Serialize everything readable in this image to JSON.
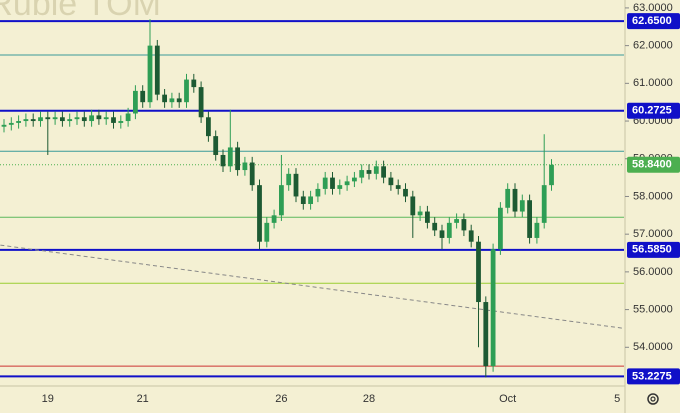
{
  "chart_data": {
    "type": "candlestick",
    "watermark": "n Ruble TOM",
    "categories": [
      null,
      null,
      null,
      null,
      null,
      null,
      "19",
      null,
      null,
      null,
      null,
      null,
      null,
      null,
      null,
      null,
      null,
      null,
      null,
      "21",
      null,
      null,
      null,
      null,
      null,
      null,
      null,
      null,
      null,
      null,
      null,
      null,
      null,
      null,
      null,
      null,
      null,
      null,
      "26",
      null,
      null,
      null,
      null,
      null,
      null,
      null,
      null,
      null,
      null,
      null,
      "28",
      null,
      null,
      null,
      null,
      null,
      null,
      null,
      null,
      null,
      null,
      null,
      null,
      null,
      null,
      null,
      null,
      null,
      null,
      "Oct",
      null,
      null,
      null,
      null,
      null,
      null,
      null,
      null,
      null,
      null,
      null,
      null,
      null,
      null,
      "5"
    ],
    "open": [
      59.85,
      59.9,
      59.95,
      60.0,
      60.05,
      60.0,
      60.1,
      60.05,
      60.1,
      60.0,
      60.05,
      60.1,
      60.0,
      60.15,
      60.05,
      60.1,
      59.95,
      60.0,
      60.2,
      60.8,
      60.5,
      62.0,
      60.7,
      60.5,
      60.6,
      60.5,
      61.1,
      60.9,
      60.1,
      59.6,
      59.1,
      58.8,
      59.3,
      58.7,
      58.9,
      58.3,
      56.8,
      57.3,
      57.5,
      58.3,
      58.6,
      58.0,
      57.8,
      58.0,
      58.2,
      58.5,
      58.2,
      58.3,
      58.4,
      58.5,
      58.7,
      58.6,
      58.8,
      58.5,
      58.3,
      58.2,
      58.0,
      57.5,
      57.6,
      57.3,
      57.1,
      56.9,
      57.3,
      57.4,
      57.1,
      56.8,
      55.2,
      53.5,
      56.6,
      57.7,
      58.2,
      57.6,
      57.9,
      56.9,
      57.3,
      58.3,
      null,
      null,
      null,
      null,
      null,
      null,
      null,
      null,
      null
    ],
    "high": [
      60.05,
      60.1,
      60.15,
      60.2,
      60.2,
      60.25,
      60.25,
      60.25,
      60.25,
      60.2,
      60.25,
      60.25,
      60.3,
      60.3,
      60.25,
      60.25,
      60.15,
      60.35,
      60.95,
      60.95,
      62.7,
      62.15,
      60.85,
      60.75,
      60.75,
      61.25,
      61.25,
      61.05,
      60.25,
      59.75,
      59.25,
      60.3,
      59.45,
      59.05,
      59.05,
      58.45,
      57.45,
      57.65,
      59.1,
      58.75,
      58.75,
      58.15,
      58.15,
      58.35,
      58.65,
      58.65,
      58.45,
      58.55,
      58.65,
      58.85,
      58.85,
      58.95,
      58.95,
      58.65,
      58.45,
      58.35,
      58.15,
      57.75,
      57.75,
      57.45,
      57.25,
      57.45,
      57.55,
      57.55,
      57.25,
      56.95,
      55.35,
      56.75,
      57.85,
      58.35,
      58.35,
      58.05,
      58.05,
      57.45,
      59.65,
      58.99,
      null,
      null,
      null,
      null,
      null,
      null,
      null,
      null,
      null
    ],
    "low": [
      59.7,
      59.75,
      59.8,
      59.85,
      59.85,
      59.85,
      59.1,
      59.9,
      59.85,
      59.85,
      59.9,
      59.85,
      59.85,
      59.9,
      59.9,
      59.8,
      59.8,
      59.85,
      60.05,
      60.35,
      60.35,
      60.55,
      60.35,
      60.35,
      60.35,
      60.35,
      60.75,
      59.95,
      59.45,
      58.95,
      58.65,
      58.65,
      58.55,
      58.55,
      58.15,
      56.6,
      56.65,
      57.15,
      57.35,
      58.15,
      57.85,
      57.65,
      57.65,
      57.85,
      58.05,
      58.05,
      58.05,
      58.15,
      58.25,
      58.35,
      58.45,
      58.45,
      58.35,
      58.15,
      58.05,
      57.85,
      56.9,
      57.35,
      57.15,
      56.95,
      56.6,
      56.75,
      57.15,
      56.95,
      56.65,
      54.0,
      53.2,
      53.35,
      56.45,
      57.55,
      57.45,
      57.45,
      56.75,
      56.75,
      57.15,
      58.15,
      null,
      null,
      null,
      null,
      null,
      null,
      null,
      null,
      null
    ],
    "close": [
      59.9,
      59.95,
      60.0,
      60.05,
      60.0,
      60.1,
      60.05,
      60.1,
      60.0,
      60.05,
      60.1,
      60.0,
      60.15,
      60.05,
      60.1,
      59.95,
      60.0,
      60.2,
      60.8,
      60.5,
      62.0,
      60.7,
      60.5,
      60.6,
      60.5,
      61.1,
      60.9,
      60.1,
      59.6,
      59.1,
      58.8,
      59.3,
      58.7,
      58.9,
      58.3,
      56.8,
      57.3,
      57.5,
      58.3,
      58.6,
      58.0,
      57.8,
      58.0,
      58.2,
      58.5,
      58.2,
      58.3,
      58.4,
      58.5,
      58.7,
      58.6,
      58.8,
      58.5,
      58.3,
      58.2,
      58.0,
      57.5,
      57.6,
      57.3,
      57.1,
      56.9,
      57.3,
      57.4,
      57.1,
      56.8,
      55.2,
      53.5,
      56.6,
      57.7,
      58.2,
      57.6,
      57.9,
      56.9,
      57.3,
      58.3,
      58.84,
      null,
      null,
      null,
      null,
      null,
      null,
      null,
      null,
      null
    ],
    "up_color": "#2e9e55",
    "down_color": "#1d5a33",
    "ylim": [
      53.0,
      63.21
    ],
    "yticks": [
      {
        "value": 54,
        "label": "54.0000"
      },
      {
        "value": 55,
        "label": "55.0000"
      },
      {
        "value": 56,
        "label": "56.0000"
      },
      {
        "value": 57,
        "label": "57.0000"
      },
      {
        "value": 58,
        "label": "58.0000"
      },
      {
        "value": 59,
        "label": "59.0000"
      },
      {
        "value": 60,
        "label": "60.0000"
      },
      {
        "value": 61,
        "label": "61.0000"
      },
      {
        "value": 62,
        "label": "62.0000"
      },
      {
        "value": 63,
        "label": "63.0000"
      }
    ],
    "lines": [
      {
        "value": 61.75,
        "color": "#3a9a9a"
      },
      {
        "value": 59.2,
        "color": "#3a9a9a"
      },
      {
        "value": 57.45,
        "color": "#5cb85c"
      },
      {
        "value": 55.7,
        "color": "#9acd32"
      },
      {
        "value": 53.5,
        "color": "#cc3333"
      }
    ],
    "levels": [
      {
        "value": 62.65,
        "label": "62.6500",
        "color": "#1010c8"
      },
      {
        "value": 60.2725,
        "label": "60.2725",
        "color": "#1010c8"
      },
      {
        "value": 56.585,
        "label": "56.5850",
        "color": "#1010c8"
      },
      {
        "value": 53.2275,
        "label": "53.2275",
        "color": "#1010c8"
      }
    ],
    "last_price": {
      "value": 58.84,
      "label": "58.8400",
      "color": "#4caf50"
    },
    "trendline": {
      "x": [
        -0.5,
        85
      ],
      "y": [
        56.71,
        54.5
      ],
      "color": "#888888"
    }
  }
}
